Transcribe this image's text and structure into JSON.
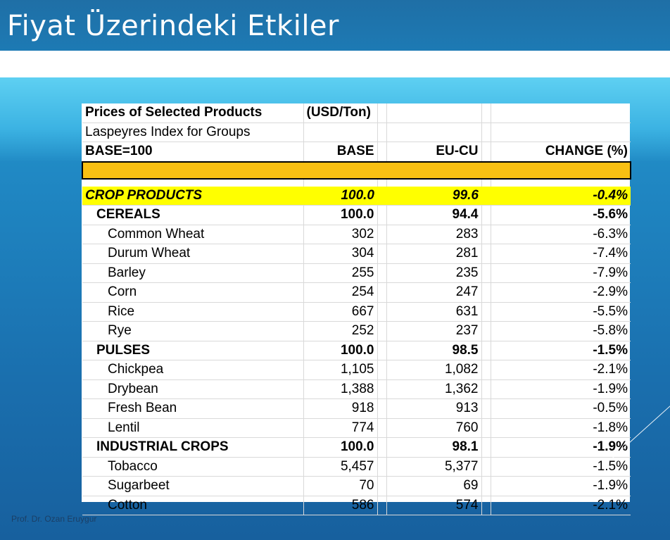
{
  "slide": {
    "title": "Fiyat Üzerindeki Etkiler",
    "footer": "Prof. Dr. Ozan Eruygur"
  },
  "table": {
    "header_row1": {
      "label": "Prices of Selected Products",
      "unit": "(USD/Ton)"
    },
    "header_row2": {
      "label": "Laspeyres Index for Groups"
    },
    "columns": {
      "label": "BASE=100",
      "base": "BASE",
      "eucu": "EU-CU",
      "change": "CHANGE (%)"
    },
    "highlight_colors": {
      "orange_bar": "#f9c013",
      "crop_row": "#ffff00"
    },
    "rows": [
      {
        "kind": "crop",
        "name": "CROP PRODUCTS",
        "base": "100.0",
        "eucu": "99.6",
        "change": "-0.4%"
      },
      {
        "kind": "group",
        "name": "CEREALS",
        "base": "100.0",
        "eucu": "94.4",
        "change": "-5.6%"
      },
      {
        "kind": "item",
        "name": "Common Wheat",
        "base": "302",
        "eucu": "283",
        "change": "-6.3%"
      },
      {
        "kind": "item",
        "name": "Durum Wheat",
        "base": "304",
        "eucu": "281",
        "change": "-7.4%"
      },
      {
        "kind": "item",
        "name": "Barley",
        "base": "255",
        "eucu": "235",
        "change": "-7.9%"
      },
      {
        "kind": "item",
        "name": "Corn",
        "base": "254",
        "eucu": "247",
        "change": "-2.9%"
      },
      {
        "kind": "item",
        "name": "Rice",
        "base": "667",
        "eucu": "631",
        "change": "-5.5%"
      },
      {
        "kind": "item",
        "name": "Rye",
        "base": "252",
        "eucu": "237",
        "change": "-5.8%"
      },
      {
        "kind": "group",
        "name": "PULSES",
        "base": "100.0",
        "eucu": "98.5",
        "change": "-1.5%"
      },
      {
        "kind": "item",
        "name": "Chickpea",
        "base": "1,105",
        "eucu": "1,082",
        "change": "-2.1%"
      },
      {
        "kind": "item",
        "name": "Drybean",
        "base": "1,388",
        "eucu": "1,362",
        "change": "-1.9%"
      },
      {
        "kind": "item",
        "name": "Fresh Bean",
        "base": "918",
        "eucu": "913",
        "change": "-0.5%"
      },
      {
        "kind": "item",
        "name": "Lentil",
        "base": "774",
        "eucu": "760",
        "change": "-1.8%"
      },
      {
        "kind": "group",
        "name": "INDUSTRIAL CROPS",
        "base": "100.0",
        "eucu": "98.1",
        "change": "-1.9%"
      },
      {
        "kind": "item",
        "name": "Tobacco",
        "base": "5,457",
        "eucu": "5,377",
        "change": "-1.5%"
      },
      {
        "kind": "item",
        "name": "Sugarbeet",
        "base": "70",
        "eucu": "69",
        "change": "-1.9%"
      },
      {
        "kind": "item",
        "name": "Cotton",
        "base": "586",
        "eucu": "574",
        "change": "-2.1%"
      }
    ]
  }
}
